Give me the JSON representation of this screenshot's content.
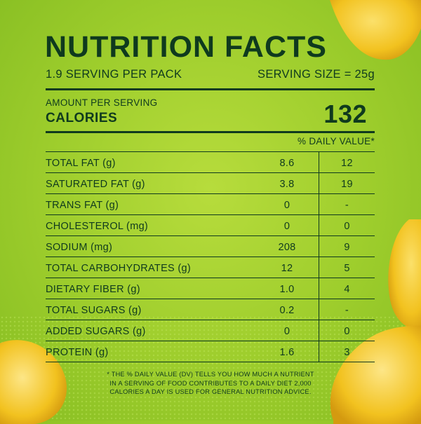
{
  "panel": {
    "title": "NUTRITION FACTS",
    "servings_per_pack": "1.9 SERVING PER PACK",
    "serving_size": "SERVING SIZE = 25g",
    "amount_per_serving_label": "AMOUNT PER SERVING",
    "calories_label": "CALORIES",
    "calories_value": "132",
    "daily_value_header": "% DAILY VALUE*"
  },
  "nutrients": [
    {
      "name": "TOTAL FAT (g)",
      "amount": "8.6",
      "dv": "12"
    },
    {
      "name": "SATURATED FAT (g)",
      "amount": "3.8",
      "dv": "19"
    },
    {
      "name": "TRANS FAT (g)",
      "amount": "0",
      "dv": "-"
    },
    {
      "name": "CHOLESTEROL (mg)",
      "amount": "0",
      "dv": "0"
    },
    {
      "name": "SODIUM (mg)",
      "amount": "208",
      "dv": "9"
    },
    {
      "name": "TOTAL CARBOHYDRATES (g)",
      "amount": "12",
      "dv": "5"
    },
    {
      "name": "DIETARY FIBER (g)",
      "amount": "1.0",
      "dv": "4"
    },
    {
      "name": "TOTAL SUGARS (g)",
      "amount": "0.2",
      "dv": "-"
    },
    {
      "name": "ADDED SUGARS (g)",
      "amount": "0",
      "dv": "0"
    },
    {
      "name": "PROTEIN (g)",
      "amount": "1.6",
      "dv": "3"
    }
  ],
  "footnote": {
    "line1": "* THE % DAILY VALUE (DV) TELLS YOU HOW MUCH A NUTRIENT",
    "line2": "IN A SERVING OF FOOD CONTRIBUTES TO A DAILY DIET 2,000",
    "line3": "CALORIES A DAY IS USED FOR GENERAL NUTRITION ADVICE."
  },
  "colors": {
    "background": "#9dcd2c",
    "text": "#0f3a1e",
    "chip": "#f2c21f"
  }
}
